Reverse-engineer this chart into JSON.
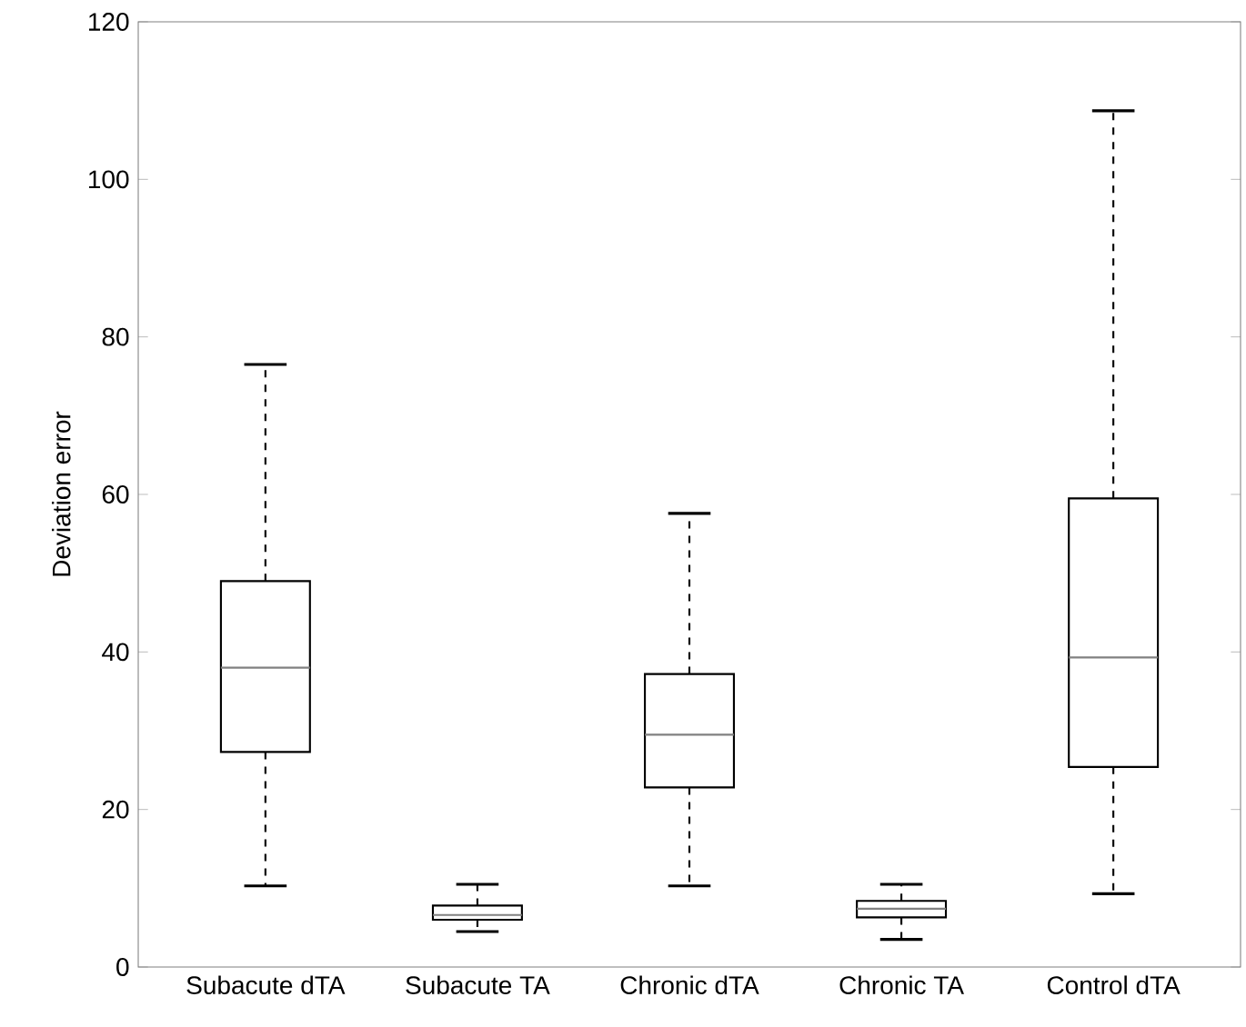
{
  "chart_data": {
    "type": "box",
    "ylabel": "Deviation error",
    "categories": [
      "Subacute dTA",
      "Subacute TA",
      "Chronic dTA",
      "Chronic TA",
      "Control dTA"
    ],
    "boxes": [
      {
        "low": 10.3,
        "q1": 27.3,
        "median": 38,
        "q3": 49,
        "high": 76.5
      },
      {
        "low": 4.5,
        "q1": 6,
        "median": 6.6,
        "q3": 7.8,
        "high": 10.5
      },
      {
        "low": 10.3,
        "q1": 22.8,
        "median": 29.5,
        "q3": 37.2,
        "high": 57.6
      },
      {
        "low": 3.5,
        "q1": 6.3,
        "median": 7.4,
        "q3": 8.4,
        "high": 10.5
      },
      {
        "low": 9.3,
        "q1": 25.4,
        "median": 39.3,
        "q3": 59.5,
        "high": 108.7
      }
    ],
    "ylim": [
      0,
      120
    ],
    "yticks": [
      0,
      20,
      40,
      60,
      80,
      100,
      120
    ]
  }
}
